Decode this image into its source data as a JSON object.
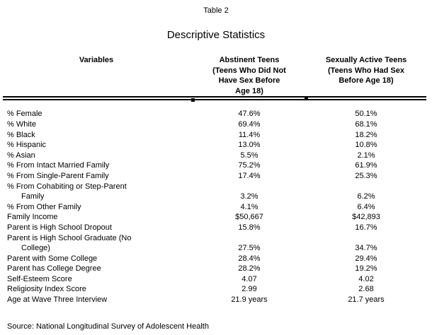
{
  "page": {
    "table_label": "Table 2",
    "title": "Descriptive Statistics",
    "source": "Source: National Longitudinal Survey of Adolescent Health"
  },
  "columns": {
    "variables": "Variables",
    "abstinent": "Abstinent Teens\n(Teens Who Did Not\nHave Sex Before\nAge 18)",
    "active": "Sexually Active Teens\n(Teens Who Had Sex\nBefore Age 18)"
  },
  "rows": [
    {
      "variable": "% Female",
      "abstinent": "47.6%",
      "active": "50.1%"
    },
    {
      "variable": "% White",
      "abstinent": "69.4%",
      "active": "68.1%"
    },
    {
      "variable": "% Black",
      "abstinent": "11.4%",
      "active": "18.2%"
    },
    {
      "variable": "% Hispanic",
      "abstinent": "13.0%",
      "active": "10.8%"
    },
    {
      "variable": "% Asian",
      "abstinent": "5.5%",
      "active": "2.1%"
    },
    {
      "variable": "% From Intact Married Family",
      "abstinent": "75.2%",
      "active": "61.9%"
    },
    {
      "variable": "% From Single-Parent Family",
      "abstinent": "17.4%",
      "active": "25.3%"
    },
    {
      "variable": "% From Cohabiting or Step-Parent\nFamily",
      "abstinent": "3.2%",
      "active": "6.2%"
    },
    {
      "variable": "% From Other Family",
      "abstinent": "4.1%",
      "active": "6.4%"
    },
    {
      "variable": "Family Income",
      "abstinent": "$50,667",
      "active": "$42,893"
    },
    {
      "variable": "Parent is High School Dropout",
      "abstinent": "15.8%",
      "active": "16.7%"
    },
    {
      "variable": "Parent is High School Graduate (No\nCollege)",
      "abstinent": "27.5%",
      "active": "34.7%"
    },
    {
      "variable": "Parent with Some College",
      "abstinent": "28.4%",
      "active": "29.4%"
    },
    {
      "variable": "Parent has College Degree",
      "abstinent": "28.2%",
      "active": "19.2%"
    },
    {
      "variable": "Self-Esteem Score",
      "abstinent": "4.07",
      "active": "4.02"
    },
    {
      "variable": "Religiosity Index Score",
      "abstinent": "2.99",
      "active": "2.68"
    },
    {
      "variable": "Age at Wave Three Interview",
      "abstinent": "21.9 years",
      "active": "21.7 years"
    }
  ]
}
